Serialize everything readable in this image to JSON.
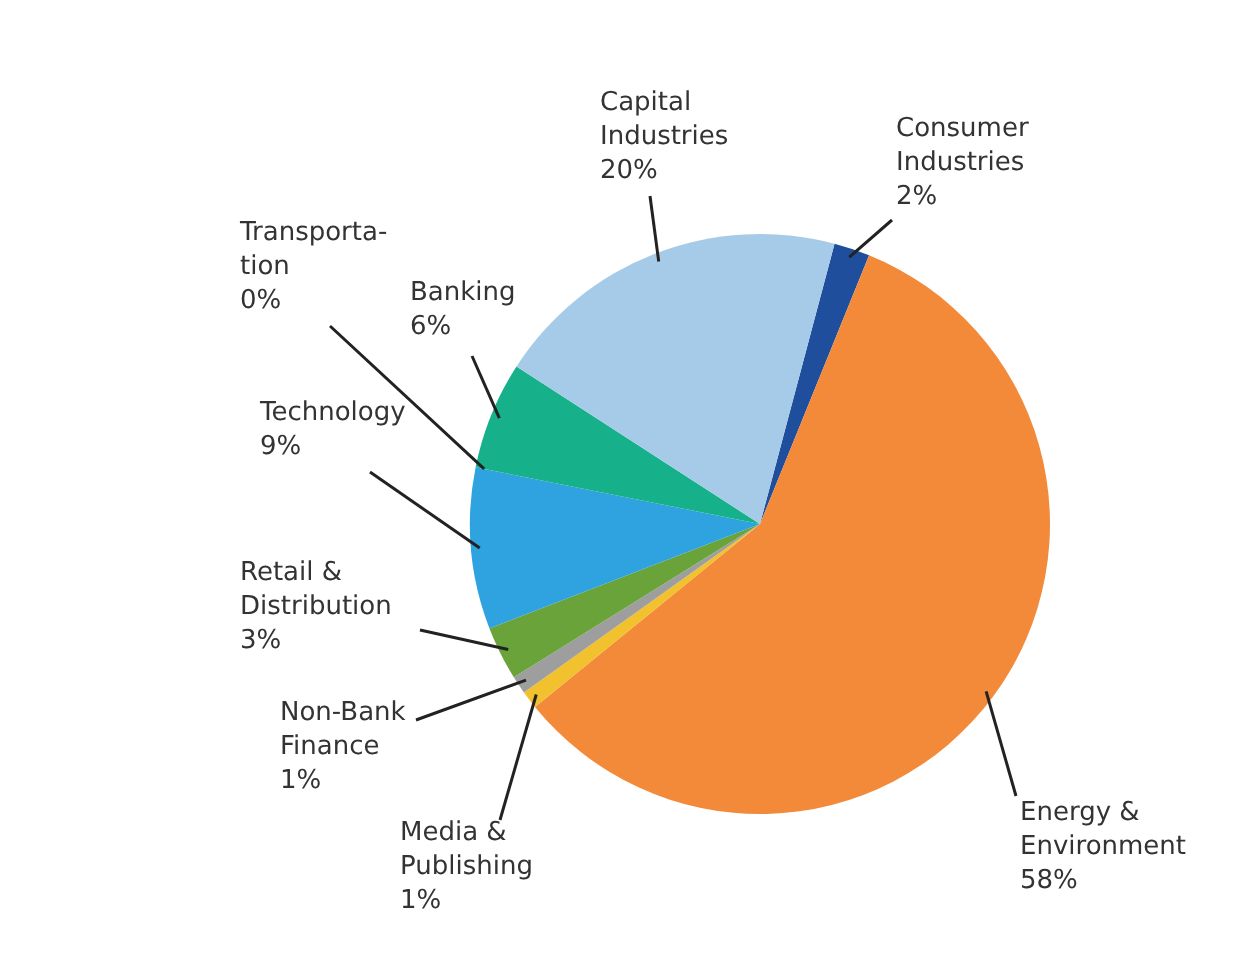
{
  "chart_data": {
    "type": "pie",
    "categories": [
      "Consumer\nIndustries",
      "Energy &\nEnvironment",
      "Media &\nPublishing",
      "Non-Bank\nFinance",
      "Retail &\nDistribution",
      "Technology",
      "Transporta-\ntion",
      "Banking",
      "Capital\nIndustries"
    ],
    "values": [
      2,
      58,
      1,
      1,
      3,
      9,
      0,
      6,
      20
    ],
    "value_labels": [
      "2%",
      "58%",
      "1%",
      "1%",
      "3%",
      "9%",
      "0%",
      "6%",
      "20%"
    ],
    "colors": [
      "#1f4e9c",
      "#f28a3a",
      "#f2c12e",
      "#9e9e9e",
      "#6aa33a",
      "#2ea3e0",
      "#555555",
      "#16b08a",
      "#a6cbe8"
    ]
  }
}
